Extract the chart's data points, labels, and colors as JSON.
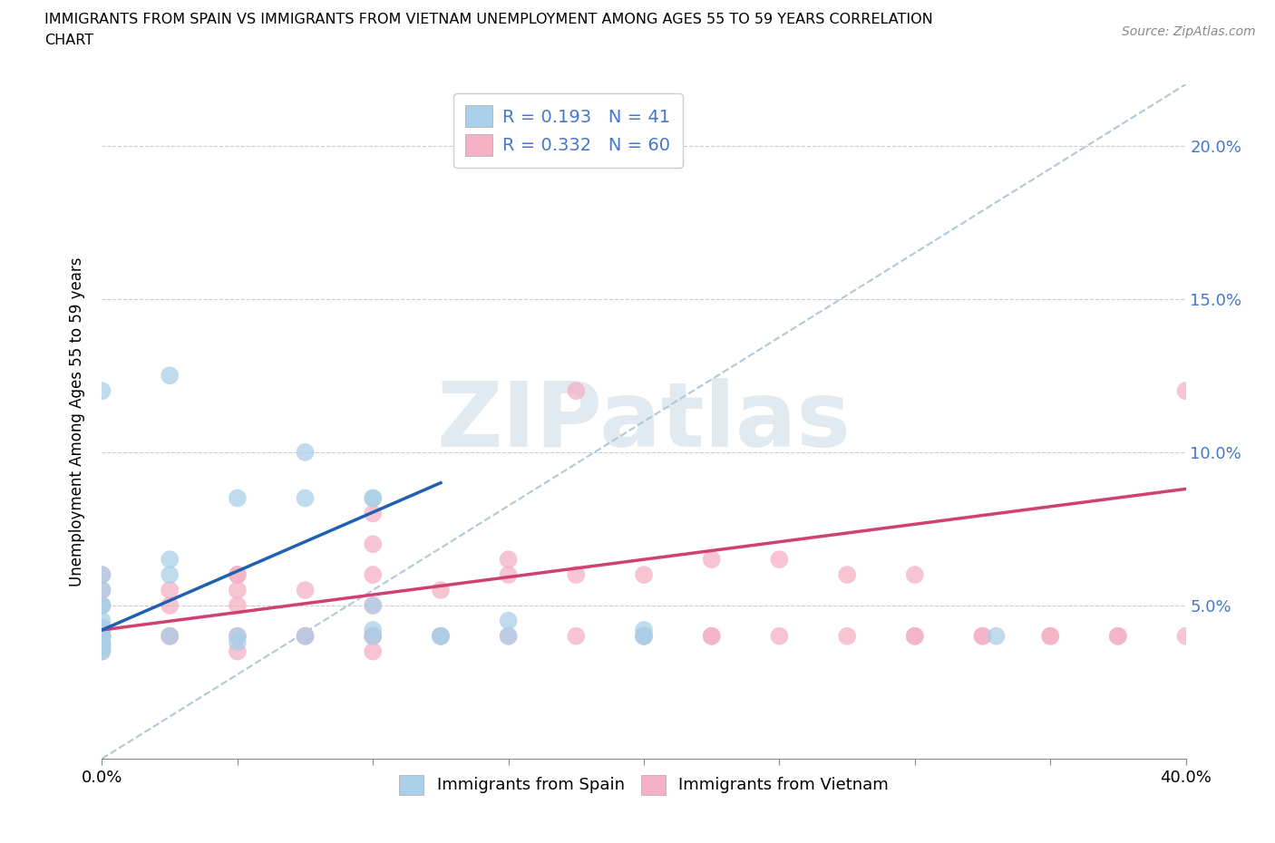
{
  "title_line1": "IMMIGRANTS FROM SPAIN VS IMMIGRANTS FROM VIETNAM UNEMPLOYMENT AMONG AGES 55 TO 59 YEARS CORRELATION",
  "title_line2": "CHART",
  "source_text": "Source: ZipAtlas.com",
  "ylabel": "Unemployment Among Ages 55 to 59 years",
  "xlim": [
    0.0,
    0.4
  ],
  "ylim": [
    0.0,
    0.22
  ],
  "xtick_positions": [
    0.0,
    0.05,
    0.1,
    0.15,
    0.2,
    0.25,
    0.3,
    0.35,
    0.4
  ],
  "ytick_positions": [
    0.05,
    0.1,
    0.15,
    0.2
  ],
  "ytick_labels": [
    "5.0%",
    "10.0%",
    "15.0%",
    "20.0%"
  ],
  "spain_color": "#aacfe8",
  "vietnam_color": "#f4b0c5",
  "spain_line_color": "#2060b0",
  "vietnam_line_color": "#d04070",
  "diag_line_color": "#b0c8d8",
  "spain_R": 0.193,
  "spain_N": 41,
  "vietnam_R": 0.332,
  "vietnam_N": 60,
  "legend_text_color": "#4477cc",
  "watermark": "ZIPatlas",
  "watermark_color": "#cddbe8",
  "background_color": "#ffffff",
  "spain_scatter_x": [
    0.0,
    0.0,
    0.0,
    0.0,
    0.0,
    0.0,
    0.0,
    0.0,
    0.0,
    0.0,
    0.0,
    0.0,
    0.0,
    0.0,
    0.0,
    0.0,
    0.0,
    0.025,
    0.025,
    0.025,
    0.05,
    0.05,
    0.075,
    0.075,
    0.1,
    0.1,
    0.1,
    0.1,
    0.125,
    0.15,
    0.2,
    0.2,
    0.33,
    0.0,
    0.025,
    0.05,
    0.075,
    0.1,
    0.125,
    0.15,
    0.2
  ],
  "spain_scatter_y": [
    0.04,
    0.04,
    0.042,
    0.045,
    0.05,
    0.05,
    0.038,
    0.037,
    0.036,
    0.04,
    0.04,
    0.042,
    0.043,
    0.035,
    0.06,
    0.055,
    0.04,
    0.065,
    0.125,
    0.04,
    0.085,
    0.04,
    0.085,
    0.04,
    0.04,
    0.042,
    0.05,
    0.085,
    0.04,
    0.04,
    0.04,
    0.042,
    0.04,
    0.12,
    0.06,
    0.038,
    0.1,
    0.085,
    0.04,
    0.045,
    0.04
  ],
  "vietnam_scatter_x": [
    0.0,
    0.0,
    0.0,
    0.0,
    0.0,
    0.0,
    0.0,
    0.0,
    0.0,
    0.025,
    0.025,
    0.025,
    0.025,
    0.05,
    0.05,
    0.05,
    0.05,
    0.05,
    0.075,
    0.075,
    0.1,
    0.1,
    0.1,
    0.1,
    0.1,
    0.1,
    0.125,
    0.125,
    0.15,
    0.15,
    0.175,
    0.175,
    0.2,
    0.2,
    0.225,
    0.225,
    0.25,
    0.275,
    0.3,
    0.3,
    0.325,
    0.35,
    0.375,
    0.4,
    0.05,
    0.075,
    0.1,
    0.125,
    0.15,
    0.175,
    0.2,
    0.225,
    0.25,
    0.275,
    0.3,
    0.325,
    0.35,
    0.375,
    0.4,
    0.0
  ],
  "vietnam_scatter_y": [
    0.04,
    0.042,
    0.05,
    0.055,
    0.06,
    0.038,
    0.037,
    0.035,
    0.04,
    0.04,
    0.05,
    0.055,
    0.04,
    0.04,
    0.05,
    0.055,
    0.06,
    0.035,
    0.04,
    0.055,
    0.04,
    0.05,
    0.06,
    0.07,
    0.08,
    0.04,
    0.04,
    0.055,
    0.04,
    0.06,
    0.12,
    0.06,
    0.04,
    0.06,
    0.065,
    0.04,
    0.065,
    0.04,
    0.04,
    0.06,
    0.04,
    0.04,
    0.04,
    0.04,
    0.06,
    0.04,
    0.035,
    0.04,
    0.065,
    0.04,
    0.04,
    0.04,
    0.04,
    0.06,
    0.04,
    0.04,
    0.04,
    0.04,
    0.12,
    0.04
  ],
  "spain_trendline_x0": 0.0,
  "spain_trendline_y0": 0.042,
  "spain_trendline_x1": 0.125,
  "spain_trendline_y1": 0.09,
  "vietnam_trendline_x0": 0.0,
  "vietnam_trendline_y0": 0.042,
  "vietnam_trendline_x1": 0.4,
  "vietnam_trendline_y1": 0.088
}
